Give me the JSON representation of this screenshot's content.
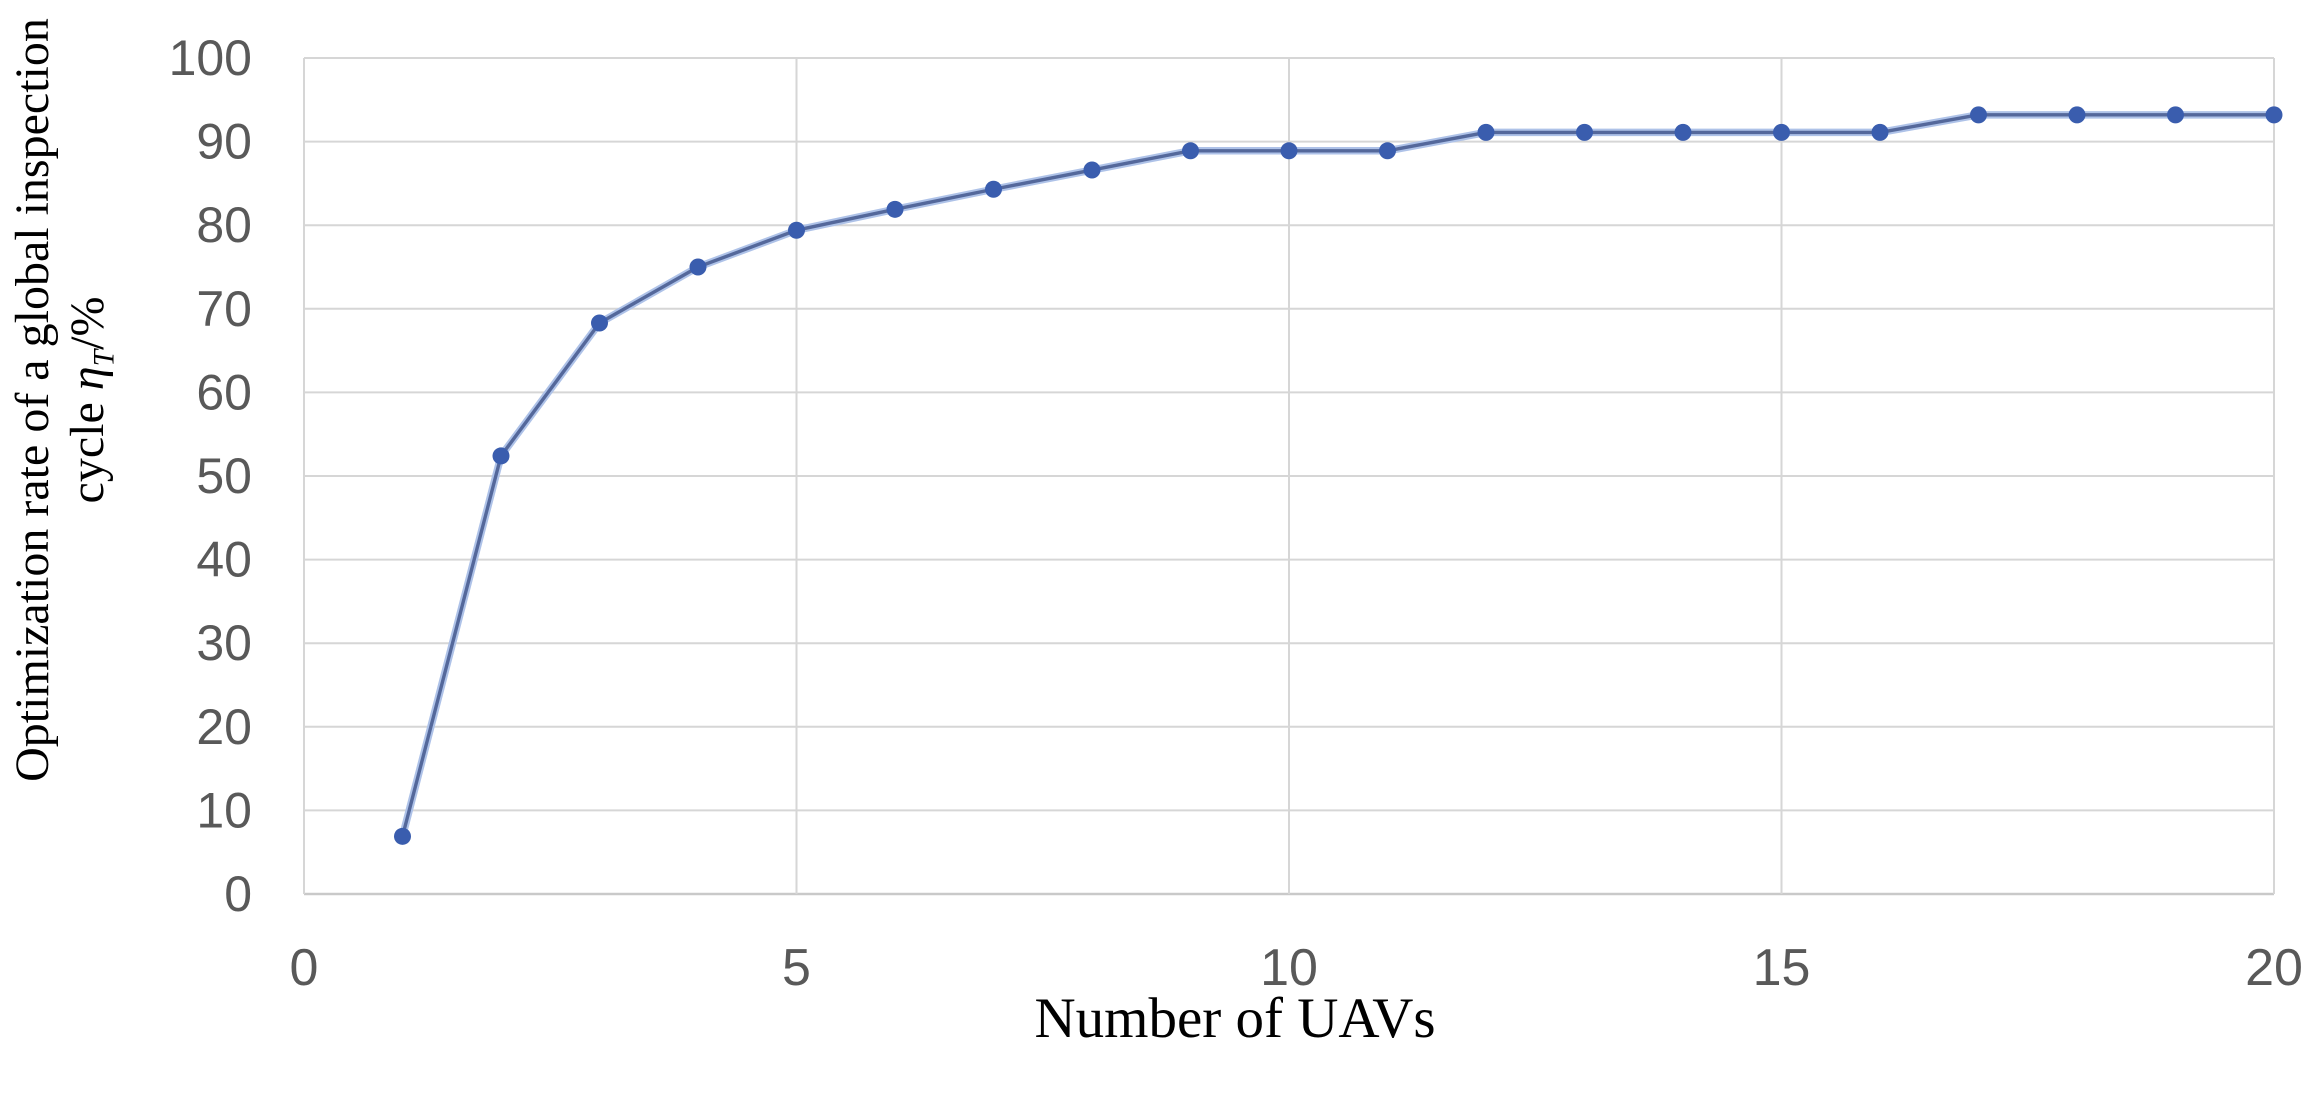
{
  "chart_data": {
    "type": "line",
    "title": "",
    "xlabel": "Number of UAVs",
    "ylabel": "Optimization rate of a global inspection cycle η_T/%",
    "ylabel_line1": "Optimization rate of a global inspection",
    "ylabel_line2_pre": "cycle ",
    "ylabel_eta": "η",
    "ylabel_eta_sub": "T",
    "ylabel_line2_post": "/%",
    "x": [
      1,
      2,
      3,
      4,
      5,
      6,
      7,
      8,
      9,
      10,
      11,
      12,
      13,
      14,
      15,
      16,
      17,
      18,
      19,
      20
    ],
    "y": [
      6.9,
      52.4,
      68.3,
      75.0,
      79.4,
      81.9,
      84.3,
      86.6,
      88.9,
      88.9,
      88.9,
      91.1,
      91.1,
      91.1,
      91.1,
      91.1,
      93.2,
      93.2,
      93.2,
      93.2
    ],
    "xlim": [
      0,
      20
    ],
    "ylim": [
      0,
      100
    ],
    "x_ticks": [
      0,
      5,
      10,
      15,
      20
    ],
    "y_ticks": [
      0,
      10,
      20,
      30,
      40,
      50,
      60,
      70,
      80,
      90,
      100
    ],
    "grid": true,
    "legend_position": "none",
    "marker_shape": "circle",
    "colors": {
      "line_halo": "#aec2e8",
      "line_core": "#54689b",
      "marker": "#3a5dae",
      "gridline": "#d6d6d6",
      "axis_line": "#c9c9c9",
      "tick_label": "#595959",
      "axis_title": "#000000",
      "background": "#ffffff"
    }
  }
}
